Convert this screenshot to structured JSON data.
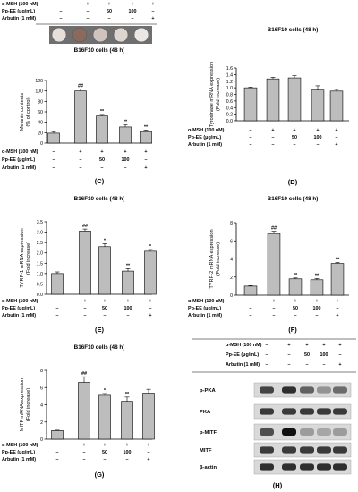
{
  "chart_data": [
    {
      "id": "C",
      "type": "bar",
      "panel_label": "(C)",
      "title": "B16F10 cells (48 h)",
      "ylabel": [
        "Melanin contents",
        "(% of control)"
      ],
      "xlabel": "",
      "ylim": [
        0,
        120
      ],
      "yticks": [
        0,
        20,
        40,
        60,
        80,
        100,
        120
      ],
      "categories": [
        "1",
        "2",
        "3",
        "4",
        "5"
      ],
      "values": [
        19,
        100,
        52,
        31,
        22
      ],
      "errors": [
        3,
        4,
        3,
        4,
        3
      ],
      "significance": [
        "",
        "##",
        "**",
        "**",
        "**"
      ],
      "treatments": [
        {
          "label": "α-MSH (100 nM)",
          "cells": [
            "–",
            "+",
            "+",
            "+",
            "+"
          ]
        },
        {
          "label": "Pp-EE (μg/mL)",
          "cells": [
            "–",
            "–",
            "50",
            "100",
            "–"
          ]
        },
        {
          "label": "Arbutin (1 mM)",
          "cells": [
            "–",
            "–",
            "–",
            "–",
            "+"
          ]
        }
      ],
      "top_table": true,
      "image_strip": true
    },
    {
      "id": "D",
      "type": "bar",
      "panel_label": "(D)",
      "title": "B16F10 cells (48 h)",
      "ylabel": [
        "Tyrosinase mRNA expression",
        "(Fold increase)"
      ],
      "xlabel": "",
      "ylim": [
        0,
        1.6
      ],
      "yticks": [
        "0.0",
        "0.2",
        "0.4",
        "0.6",
        "0.8",
        "1.0",
        "1.2",
        "1.4",
        "1.6"
      ],
      "categories": [
        "1",
        "2",
        "3",
        "4",
        "5"
      ],
      "values": [
        1.0,
        1.27,
        1.3,
        0.93,
        0.9
      ],
      "errors": [
        0.02,
        0.05,
        0.07,
        0.13,
        0.05
      ],
      "significance": [
        "",
        "",
        "",
        "",
        ""
      ],
      "treatments": [
        {
          "label": "α-MSH (100 nM)",
          "cells": [
            "–",
            "+",
            "+",
            "+",
            "+"
          ]
        },
        {
          "label": "Pp-EE (μg/mL)",
          "cells": [
            "–",
            "–",
            "50",
            "100",
            "–"
          ]
        },
        {
          "label": "Arbutin (1 mM)",
          "cells": [
            "–",
            "–",
            "–",
            "–",
            "+"
          ]
        }
      ]
    },
    {
      "id": "E",
      "type": "bar",
      "panel_label": "(E)",
      "title": "B16F10 cells (48 h)",
      "ylabel": [
        "TYRP-1 mRNA expression",
        "(Fold increase)"
      ],
      "xlabel": "",
      "ylim": [
        0,
        3.5
      ],
      "yticks": [
        "0.0",
        "0.5",
        "1.0",
        "1.5",
        "2.0",
        "2.5",
        "3.0",
        "3.5"
      ],
      "categories": [
        "1",
        "2",
        "3",
        "4",
        "5"
      ],
      "values": [
        1.0,
        3.05,
        2.3,
        1.12,
        2.08
      ],
      "errors": [
        0.08,
        0.1,
        0.15,
        0.12,
        0.08
      ],
      "significance": [
        "",
        "##",
        "*",
        "**",
        "*"
      ],
      "treatments": [
        {
          "label": "α-MSH (100 nM)",
          "cells": [
            "–",
            "+",
            "+",
            "+",
            "+"
          ]
        },
        {
          "label": "Pp-EE (μg/mL)",
          "cells": [
            "–",
            "–",
            "50",
            "100",
            "–"
          ]
        },
        {
          "label": "Arbutin (1 mM)",
          "cells": [
            "–",
            "–",
            "–",
            "–",
            "+"
          ]
        }
      ]
    },
    {
      "id": "F",
      "type": "bar",
      "panel_label": "(F)",
      "title": "B16F10 cells (48 h)",
      "ylabel": [
        "TYRP-2 mRNA expression",
        "(Fold increase)"
      ],
      "xlabel": "",
      "ylim": [
        0,
        8
      ],
      "yticks": [
        0,
        2,
        4,
        6,
        8
      ],
      "categories": [
        "1",
        "2",
        "3",
        "4",
        "5"
      ],
      "values": [
        1.0,
        6.8,
        1.8,
        1.7,
        3.5
      ],
      "errors": [
        0.05,
        0.25,
        0.1,
        0.15,
        0.1
      ],
      "significance": [
        "",
        "##",
        "**",
        "**",
        "**"
      ],
      "treatments": [
        {
          "label": "α-MSH (100 nM)",
          "cells": [
            "–",
            "+",
            "+",
            "+",
            "+"
          ]
        },
        {
          "label": "Pp-EE (μg/mL)",
          "cells": [
            "–",
            "–",
            "50",
            "100",
            "–"
          ]
        },
        {
          "label": "Arbutin (1 mM)",
          "cells": [
            "–",
            "–",
            "–",
            "–",
            "+"
          ]
        }
      ]
    },
    {
      "id": "G",
      "type": "bar",
      "panel_label": "(G)",
      "title": "B16F10 cells (48 h)",
      "ylabel": [
        "MITF mRNA expression",
        "(Fold increase)"
      ],
      "xlabel": "",
      "ylim": [
        0,
        8
      ],
      "yticks": [
        0,
        2,
        4,
        6,
        8
      ],
      "categories": [
        "1",
        "2",
        "3",
        "4",
        "5"
      ],
      "values": [
        1.0,
        6.6,
        5.1,
        4.4,
        5.35
      ],
      "errors": [
        0.05,
        0.65,
        0.2,
        0.5,
        0.45
      ],
      "significance": [
        "",
        "##",
        "*",
        "**",
        ""
      ],
      "treatments": [
        {
          "label": "α-MSH (100 nM)",
          "cells": [
            "–",
            "+",
            "+",
            "+",
            "+"
          ]
        },
        {
          "label": "Pp-EE (μg/mL)",
          "cells": [
            "–",
            "–",
            "50",
            "100",
            "–"
          ]
        },
        {
          "label": "Arbutin (1 mM)",
          "cells": [
            "–",
            "–",
            "–",
            "–",
            "+"
          ]
        }
      ]
    }
  ],
  "blot": {
    "panel_label": "(H)",
    "treatments": [
      {
        "label": "α-MSH (100 nM)",
        "cells": [
          "–",
          "+",
          "+",
          "+",
          "+"
        ]
      },
      {
        "label": "Pp-EE (μg/mL)",
        "cells": [
          "–",
          "–",
          "50",
          "100",
          "–"
        ]
      },
      {
        "label": "Arbutin (1 mM)",
        "cells": [
          "–",
          "–",
          "–",
          "–",
          "+"
        ]
      }
    ],
    "rows": [
      {
        "label": "p-PKA",
        "intensity": [
          0.75,
          0.85,
          0.6,
          0.35,
          0.55
        ]
      },
      {
        "label": "PKA",
        "intensity": [
          0.8,
          0.8,
          0.8,
          0.8,
          0.8
        ]
      },
      {
        "label": "p-MITF",
        "intensity": [
          0.7,
          1.0,
          0.3,
          0.25,
          0.3
        ]
      },
      {
        "label": "MITF",
        "intensity": [
          0.8,
          0.8,
          0.8,
          0.8,
          0.8
        ]
      },
      {
        "label": "β-actin",
        "intensity": [
          0.85,
          0.85,
          0.85,
          0.85,
          0.85
        ]
      }
    ]
  },
  "colors": {
    "bar": "#bdbdbd",
    "axis": "#000000",
    "blot_bg": "#d9d9d9",
    "band": "#111111"
  }
}
